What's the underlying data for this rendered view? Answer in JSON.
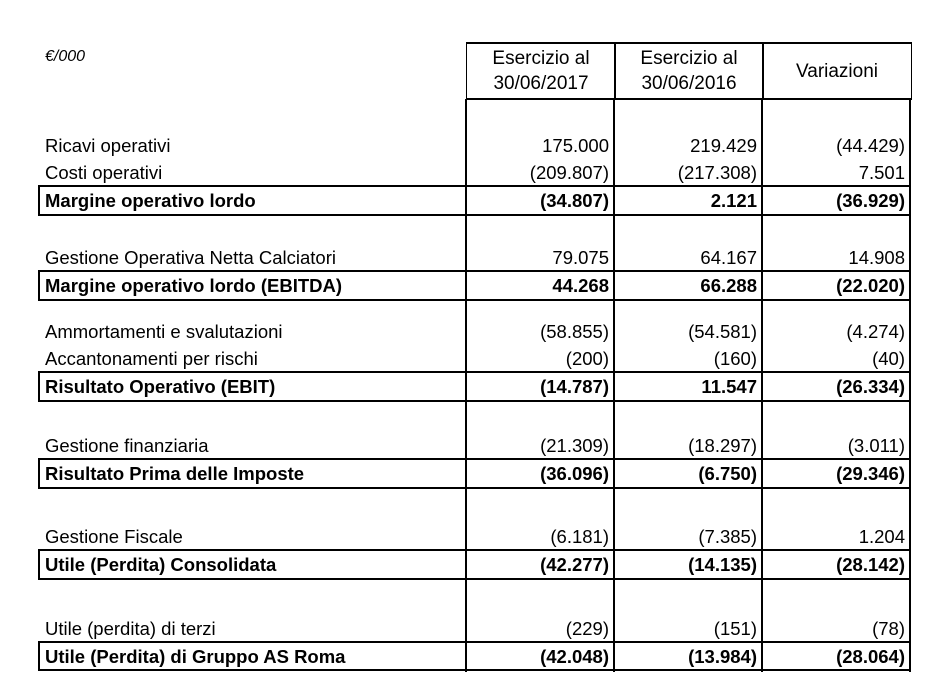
{
  "unit_label": "€/000",
  "columns": [
    "Esercizio al 30/06/2017",
    "Esercizio al 30/06/2016",
    "Variazioni"
  ],
  "columns_lines": [
    [
      "Esercizio al",
      "30/06/2017"
    ],
    [
      "Esercizio al",
      "30/06/2016"
    ],
    [
      "Variazioni"
    ]
  ],
  "groups": [
    {
      "items": [
        {
          "label": "Ricavi operativi",
          "values": [
            "175.000",
            "219.429",
            "(44.429)"
          ]
        },
        {
          "label": "Costi operativi",
          "values": [
            "(209.807)",
            "(217.308)",
            "7.501"
          ]
        }
      ],
      "total": {
        "label": "Margine operativo lordo",
        "values": [
          "(34.807)",
          "2.121",
          "(36.929)"
        ]
      }
    },
    {
      "items": [
        {
          "label": "Gestione Operativa Netta Calciatori",
          "values": [
            "79.075",
            "64.167",
            "14.908"
          ]
        }
      ],
      "total": {
        "label": "Margine operativo lordo (EBITDA)",
        "values": [
          "44.268",
          "66.288",
          "(22.020)"
        ]
      }
    },
    {
      "items": [
        {
          "label": "Ammortamenti e svalutazioni",
          "values": [
            "(58.855)",
            "(54.581)",
            "(4.274)"
          ]
        },
        {
          "label": "Accantonamenti per rischi",
          "values": [
            "(200)",
            "(160)",
            "(40)"
          ]
        }
      ],
      "total": {
        "label": "Risultato Operativo (EBIT)",
        "values": [
          "(14.787)",
          "11.547",
          "(26.334)"
        ]
      }
    },
    {
      "items": [
        {
          "label": "Gestione finanziaria",
          "values": [
            "(21.309)",
            "(18.297)",
            "(3.011)"
          ]
        }
      ],
      "total": {
        "label": "Risultato Prima delle Imposte",
        "values": [
          "(36.096)",
          "(6.750)",
          "(29.346)"
        ]
      }
    },
    {
      "items": [
        {
          "label": "Gestione Fiscale",
          "values": [
            "(6.181)",
            "(7.385)",
            "1.204"
          ]
        }
      ],
      "total": {
        "label": "Utile (Perdita) Consolidata",
        "values": [
          "(42.277)",
          "(14.135)",
          "(28.142)"
        ]
      }
    },
    {
      "items": [
        {
          "label": "Utile (perdita) di terzi",
          "values": [
            "(229)",
            "(151)",
            "(78)"
          ]
        }
      ],
      "total": {
        "label": "Utile (Perdita) di Gruppo AS Roma",
        "values": [
          "(42.048)",
          "(13.984)",
          "(28.064)"
        ]
      }
    }
  ]
}
